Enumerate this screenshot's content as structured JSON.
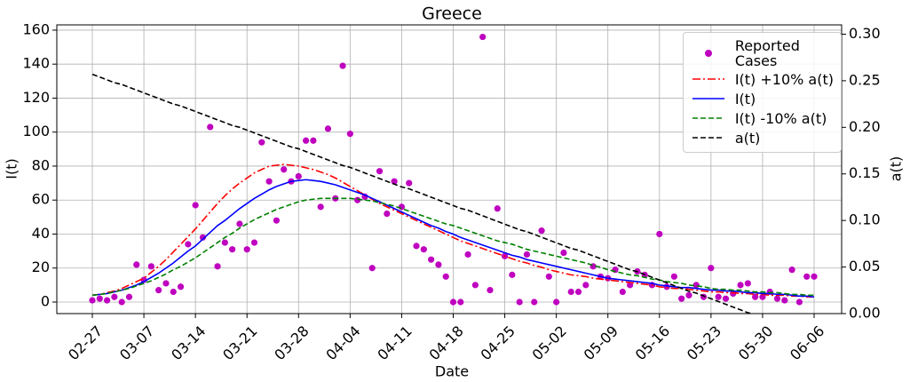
{
  "chart_data": {
    "type": "line",
    "title": "Greece",
    "xlabel": "Date",
    "ylabel": "I(t)",
    "y2label": "a(t)",
    "categories": [
      "02-27",
      null,
      null,
      null,
      null,
      null,
      null,
      "03-07",
      null,
      null,
      null,
      null,
      null,
      null,
      "03-14",
      null,
      null,
      null,
      null,
      null,
      null,
      "03-21",
      null,
      null,
      null,
      null,
      null,
      null,
      "03-28",
      null,
      null,
      null,
      null,
      null,
      null,
      "04-04",
      null,
      null,
      null,
      null,
      null,
      null,
      "04-11",
      null,
      null,
      null,
      null,
      null,
      null,
      "04-18",
      null,
      null,
      null,
      null,
      null,
      null,
      "04-25",
      null,
      null,
      null,
      null,
      null,
      null,
      "05-02",
      null,
      null,
      null,
      null,
      null,
      null,
      "05-09",
      null,
      null,
      null,
      null,
      null,
      null,
      "05-16",
      null,
      null,
      null,
      null,
      null,
      null,
      "05-23",
      null,
      null,
      null,
      null,
      null,
      null,
      "05-30",
      null,
      null,
      null,
      null,
      null,
      null,
      "06-06"
    ],
    "ylim": [
      -6.8,
      163.1
    ],
    "yticks": [
      0,
      20,
      40,
      60,
      80,
      100,
      120,
      140,
      160
    ],
    "y2lim": [
      0,
      0.31
    ],
    "y2ticks": [
      {
        "value": 0,
        "label": "0.00"
      },
      {
        "value": 0.05,
        "label": "0.05"
      },
      {
        "value": 0.1,
        "label": "0.10"
      },
      {
        "value": 0.15,
        "label": "0.15"
      },
      {
        "value": 0.2,
        "label": "0.20"
      },
      {
        "value": 0.25,
        "label": "0.25"
      },
      {
        "value": 0.3,
        "label": "0.30"
      }
    ],
    "grid": true,
    "legend_position": "upper right",
    "series": [
      {
        "name": "Reported\nCases",
        "type": "scatter",
        "color": "#bf00bf",
        "values": [
          1,
          2,
          1,
          3,
          0,
          3,
          22,
          13,
          21,
          7,
          11,
          6,
          9,
          34,
          57,
          38,
          103,
          21,
          35,
          31,
          46,
          31,
          35,
          94,
          71,
          48,
          78,
          71,
          74,
          95,
          95,
          56,
          102,
          61,
          139,
          99,
          60,
          62,
          20,
          77,
          52,
          71,
          56,
          70,
          33,
          31,
          25,
          22,
          15,
          0,
          0,
          28,
          10,
          156,
          7,
          55,
          27,
          16,
          0,
          28,
          0,
          42,
          15,
          0,
          29,
          6,
          6,
          10,
          21,
          15,
          14,
          19,
          6,
          10,
          18,
          16,
          10,
          40,
          9,
          15,
          2,
          4,
          10,
          3,
          20,
          3,
          2,
          5,
          10,
          11,
          3,
          3,
          6,
          2,
          1,
          19,
          0,
          15,
          15
        ]
      },
      {
        "name": "I(t) +10% a(t)",
        "type": "line",
        "style": "dashdot",
        "color": "#ff0000",
        "values": [
          4,
          4.5,
          5.5,
          6.5,
          8,
          10,
          12,
          14,
          17.5,
          21,
          25,
          29.5,
          34,
          38.5,
          43,
          48,
          53,
          58,
          62.5,
          66.5,
          70,
          73,
          76,
          78,
          80,
          80.5,
          81,
          80.5,
          80,
          79,
          78,
          76.5,
          75,
          73,
          70.5,
          68,
          65.5,
          63,
          60.5,
          58,
          56,
          54,
          52,
          50,
          48,
          46,
          44,
          42,
          40,
          38,
          36,
          34.5,
          33,
          31.5,
          30,
          28.5,
          27,
          25.5,
          24,
          23,
          21.5,
          20.5,
          19,
          18,
          17,
          16,
          15.5,
          15,
          14,
          13.5,
          13,
          12.5,
          12,
          11.5,
          11,
          10.5,
          10,
          9,
          8.5,
          8,
          8,
          7.5,
          7,
          6.5,
          6,
          6,
          5.5,
          5.5,
          5,
          5,
          4.5,
          4.5,
          4,
          4,
          4,
          3.5,
          3.5,
          3,
          3
        ]
      },
      {
        "name": "I(t)",
        "type": "line",
        "style": "solid",
        "color": "#0000ff",
        "values": [
          4,
          4.5,
          5,
          6,
          7,
          8.5,
          10,
          12,
          14.5,
          17,
          20,
          23,
          26.5,
          30,
          33,
          37,
          41,
          45,
          48,
          51.5,
          55,
          58,
          61,
          63.5,
          66,
          68,
          69.5,
          71,
          71.5,
          72,
          71.5,
          71,
          70,
          69,
          67.5,
          66,
          64.5,
          63,
          61,
          59,
          57,
          55,
          53,
          51,
          49,
          47,
          45,
          43.5,
          41.5,
          40,
          38,
          36.5,
          35,
          33.5,
          32,
          30.5,
          29,
          27.5,
          26.5,
          25,
          24,
          23,
          22,
          21,
          20,
          19,
          18,
          17,
          16,
          15,
          14,
          13.5,
          13,
          12.5,
          12,
          11.5,
          11,
          10,
          9.5,
          9,
          8.5,
          8.5,
          8,
          7.5,
          7,
          7,
          6.5,
          6.5,
          6,
          5.5,
          5.5,
          5,
          5,
          4.5,
          4.5,
          4,
          3.5,
          3.5,
          3
        ]
      },
      {
        "name": "I(t) -10% a(t)",
        "type": "line",
        "style": "dashed",
        "color": "#008000",
        "values": [
          4,
          4.5,
          5,
          6,
          7,
          8,
          9.5,
          11,
          12.5,
          14.5,
          16.5,
          19,
          21,
          23.5,
          26,
          29,
          32,
          35,
          38,
          40.5,
          43.5,
          46,
          48.5,
          50.5,
          52.5,
          54.5,
          56,
          57.5,
          59,
          60,
          60.5,
          61,
          61,
          61,
          61,
          61,
          60.5,
          60,
          59.5,
          58.5,
          57.5,
          56.5,
          55,
          53.5,
          52,
          50.5,
          49,
          47.5,
          46,
          45,
          43.5,
          42,
          40.5,
          39,
          37.5,
          36,
          35,
          34,
          32.5,
          31,
          30,
          29,
          28,
          27,
          26,
          25,
          24,
          23,
          21.5,
          20.5,
          19,
          18,
          17,
          16,
          15.5,
          14.5,
          13.5,
          13,
          12,
          11.5,
          11,
          10,
          9.5,
          9,
          8,
          7.5,
          7.5,
          7,
          7,
          6.5,
          6,
          6,
          5.5,
          5.5,
          5,
          4.5,
          4.5,
          4,
          4
        ]
      },
      {
        "name": "a(t)",
        "type": "line",
        "style": "dashed",
        "axis": "y2",
        "color": "#000000",
        "values": [
          0.257,
          0.254,
          0.251,
          0.248,
          0.246,
          0.243,
          0.24,
          0.237,
          0.234,
          0.231,
          0.228,
          0.225,
          0.223,
          0.22,
          0.217,
          0.214,
          0.211,
          0.208,
          0.205,
          0.202,
          0.2,
          0.197,
          0.194,
          0.191,
          0.188,
          0.185,
          0.182,
          0.179,
          0.177,
          0.174,
          0.171,
          0.168,
          0.165,
          0.162,
          0.159,
          0.157,
          0.154,
          0.151,
          0.148,
          0.145,
          0.142,
          0.139,
          0.136,
          0.134,
          0.131,
          0.128,
          0.125,
          0.122,
          0.119,
          0.116,
          0.113,
          0.111,
          0.108,
          0.105,
          0.102,
          0.099,
          0.096,
          0.093,
          0.09,
          0.088,
          0.085,
          0.082,
          0.079,
          0.076,
          0.073,
          0.07,
          0.068,
          0.065,
          0.062,
          0.059,
          0.056,
          0.053,
          0.05,
          0.047,
          0.045,
          0.042,
          0.039,
          0.036,
          0.033,
          0.03,
          0.027,
          0.024,
          0.022,
          0.019,
          0.016,
          0.013,
          0.01,
          0.007,
          0.004,
          0.001,
          -0.001,
          -0.004,
          -0.007,
          -0.01,
          -0.013,
          -0.016,
          -0.018,
          -0.021,
          -0.024
        ]
      }
    ]
  }
}
